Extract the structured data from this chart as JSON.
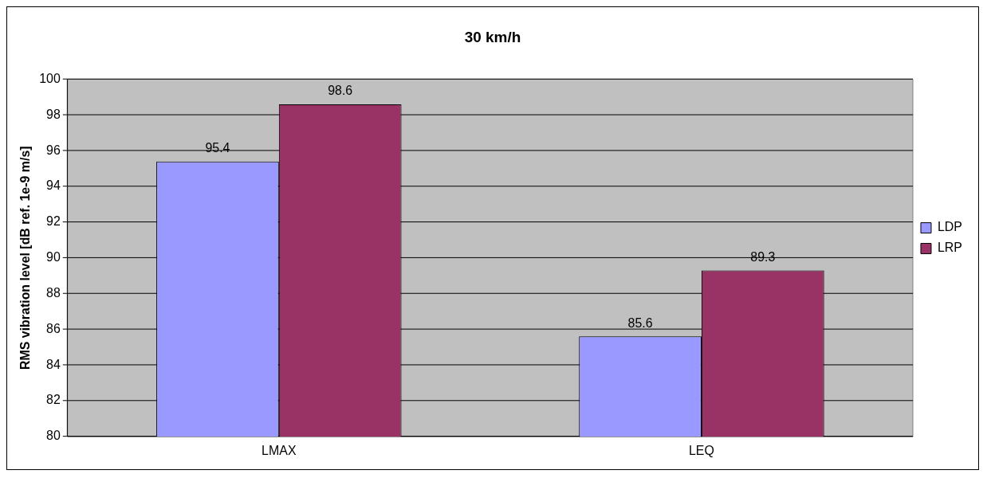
{
  "chart_data": {
    "type": "bar",
    "title": "30 km/h",
    "ylabel": "RMS vibration level [dB ref. 1e-9 m/s]",
    "categories": [
      "LMAX",
      "LEQ"
    ],
    "series": [
      {
        "name": "LDP",
        "color": "#9999ff",
        "values": [
          95.4,
          85.6
        ]
      },
      {
        "name": "LRP",
        "color": "#993366",
        "values": [
          98.6,
          89.3
        ]
      }
    ],
    "ylim": [
      80,
      100
    ],
    "yticks": [
      80,
      82,
      84,
      86,
      88,
      90,
      92,
      94,
      96,
      98,
      100
    ],
    "grid": "y",
    "legend": "right",
    "data_labels": true
  }
}
